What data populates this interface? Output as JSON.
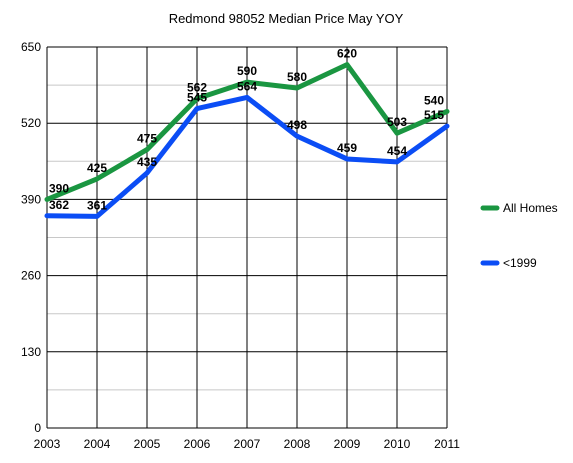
{
  "chart_data": {
    "type": "line",
    "title": "Redmond 98052 Median Price  May YOY",
    "xlabel": "",
    "ylabel": "",
    "x": [
      "2003",
      "2004",
      "2005",
      "2006",
      "2007",
      "2008",
      "2009",
      "2010",
      "2011"
    ],
    "ylim": [
      0,
      650
    ],
    "yticks": [
      "0",
      "130",
      "260",
      "390",
      "520",
      "650"
    ],
    "grid": true,
    "legend_position": "right",
    "series": [
      {
        "name": "All Homes",
        "color": "#1a9641",
        "values": [
          390,
          425,
          475,
          562,
          590,
          580,
          620,
          503,
          540
        ],
        "labels": [
          "390",
          "425",
          "475",
          "562",
          "590",
          "580",
          "620",
          "503",
          "540"
        ]
      },
      {
        "name": "<1999",
        "color": "#0b4df5",
        "values": [
          362,
          361,
          435,
          545,
          564,
          498,
          459,
          454,
          515
        ],
        "labels": [
          "362",
          "361",
          "435",
          "545",
          "564",
          "498",
          "459",
          "454",
          "515"
        ]
      }
    ]
  }
}
